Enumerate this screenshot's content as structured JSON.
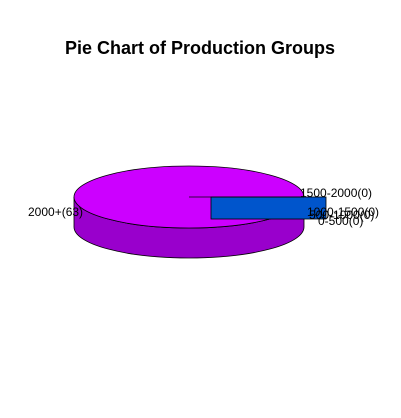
{
  "chart_data": {
    "type": "pie",
    "title": "Pie Chart of Production Groups",
    "three_d": true,
    "categories": [
      "2000+",
      "1500-2000",
      "1000-1500",
      "500-1000",
      "0-500"
    ],
    "values": [
      63,
      0,
      0,
      0,
      0
    ],
    "labels": [
      "2000+(63)",
      "1500-2000(0)",
      "1000-1500(0)",
      "500-1000(0)",
      "0-500(0)"
    ],
    "colors": {
      "slice_top": "#cc00ff",
      "slice_side": "#9900cc",
      "zero_slice_block": "#0055cc",
      "outline": "#000000",
      "background": "#ffffff"
    }
  }
}
